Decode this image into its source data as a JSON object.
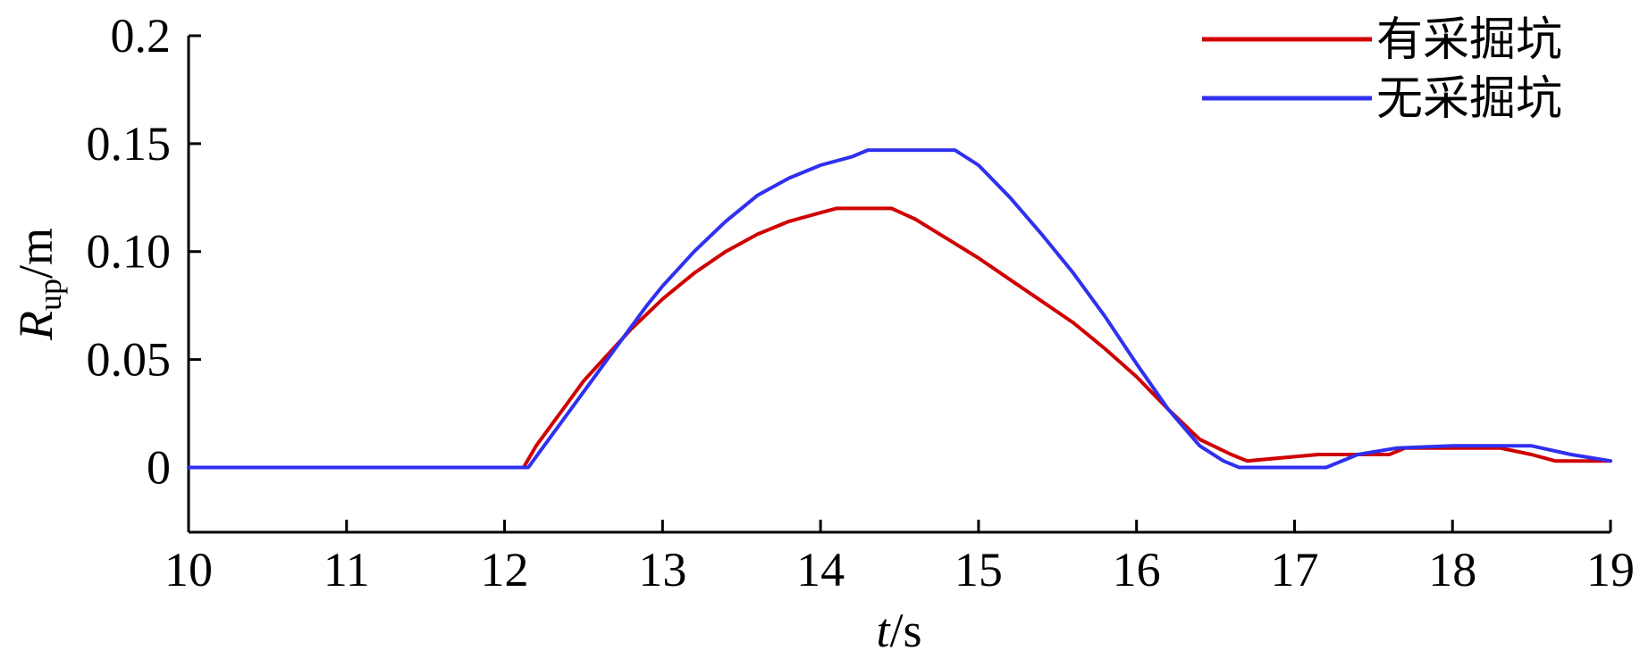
{
  "chart_data": {
    "type": "line",
    "title": "",
    "xlabel": "t",
    "xlabel_unit": "/s",
    "ylabel": "R",
    "ylabel_sub": "up",
    "ylabel_unit": "/m",
    "xlim": [
      10,
      19
    ],
    "ylim": [
      -0.03,
      0.2
    ],
    "xticks": [
      10,
      11,
      12,
      13,
      14,
      15,
      16,
      17,
      18,
      19
    ],
    "xtick_labels": [
      "10",
      "11",
      "12",
      "13",
      "14",
      "15",
      "16",
      "17",
      "18",
      "19"
    ],
    "yticks": [
      0,
      0.05,
      0.1,
      0.15,
      0.2
    ],
    "ytick_labels": [
      "0",
      "0.05",
      "0.10",
      "0.15",
      "0.2"
    ],
    "grid": false,
    "legend_position": "top-right",
    "series": [
      {
        "name": "有采掘坑",
        "color": "#d00000",
        "x": [
          10,
          12.12,
          12.2,
          12.3,
          12.4,
          12.5,
          12.6,
          12.7,
          12.8,
          12.9,
          13.0,
          13.2,
          13.4,
          13.6,
          13.8,
          14.0,
          14.1,
          14.3,
          14.45,
          14.6,
          14.8,
          15.0,
          15.2,
          15.4,
          15.6,
          15.8,
          16.0,
          16.2,
          16.4,
          16.6,
          16.7,
          17.15,
          17.6,
          17.7,
          18.3,
          18.5,
          18.65,
          19.0
        ],
        "y": [
          0,
          0,
          0.01,
          0.02,
          0.03,
          0.04,
          0.048,
          0.056,
          0.064,
          0.071,
          0.078,
          0.09,
          0.1,
          0.108,
          0.114,
          0.118,
          0.12,
          0.12,
          0.12,
          0.115,
          0.106,
          0.097,
          0.087,
          0.077,
          0.067,
          0.055,
          0.042,
          0.027,
          0.013,
          0.006,
          0.003,
          0.006,
          0.006,
          0.009,
          0.009,
          0.006,
          0.003,
          0.003
        ]
      },
      {
        "name": "无采掘坑",
        "color": "#3030f0",
        "x": [
          10,
          12.15,
          12.2,
          12.3,
          12.4,
          12.5,
          12.6,
          12.7,
          12.8,
          12.9,
          13.0,
          13.2,
          13.4,
          13.6,
          13.8,
          14.0,
          14.2,
          14.3,
          14.85,
          15.0,
          15.2,
          15.4,
          15.6,
          15.8,
          16.0,
          16.2,
          16.4,
          16.55,
          16.65,
          17.2,
          17.4,
          17.65,
          18.0,
          18.5,
          18.75,
          19.0
        ],
        "y": [
          0,
          0,
          0.005,
          0.015,
          0.025,
          0.035,
          0.045,
          0.055,
          0.065,
          0.075,
          0.084,
          0.1,
          0.114,
          0.126,
          0.134,
          0.14,
          0.144,
          0.147,
          0.147,
          0.14,
          0.125,
          0.108,
          0.09,
          0.07,
          0.048,
          0.027,
          0.01,
          0.003,
          0,
          0,
          0.006,
          0.009,
          0.01,
          0.01,
          0.006,
          0.003
        ]
      }
    ]
  }
}
